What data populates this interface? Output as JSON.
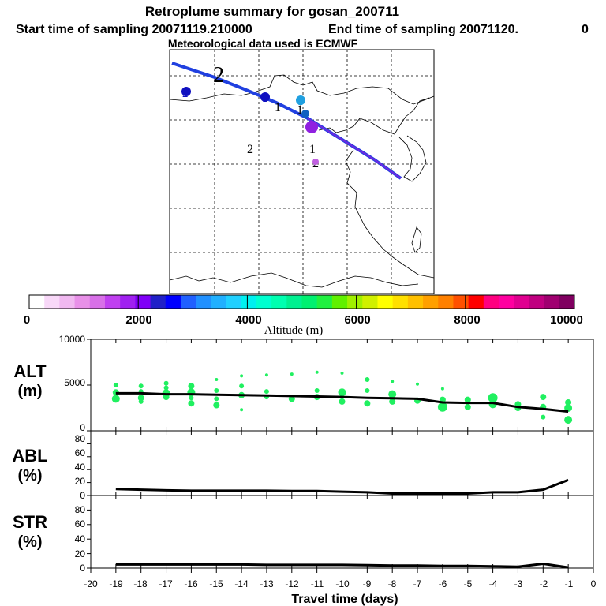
{
  "header": {
    "title": "Retroplume summary for gosan_200711",
    "start_label": "Start time of sampling 20071119.210000",
    "end_label": "End time of sampling 20071120.",
    "end_suffix": "0",
    "met_label": "Meteorological data used is ECMWF"
  },
  "colorbar": {
    "ticks": [
      "0",
      "2000",
      "4000",
      "6000",
      "8000",
      "10000"
    ],
    "label": "Altitude (m)",
    "colors": [
      "#ffffff",
      "#f8d8f8",
      "#f0b8f0",
      "#e890e8",
      "#d870e8",
      "#c040f0",
      "#a020f0",
      "#8000f8",
      "#2020c8",
      "#0000ff",
      "#2060ff",
      "#2090ff",
      "#20b0ff",
      "#20d0ff",
      "#00f0f0",
      "#00ffd0",
      "#00ffb0",
      "#00f090",
      "#00f070",
      "#20f040",
      "#60f000",
      "#a0f000",
      "#d0f000",
      "#ffff00",
      "#ffe000",
      "#ffc000",
      "#ffa000",
      "#ff8000",
      "#ff5000",
      "#ff0000",
      "#ff0080",
      "#ff00a0",
      "#e00090",
      "#c00080",
      "#a00070",
      "#800060"
    ]
  },
  "map": {
    "path_color": "#2040e0",
    "labels": [
      {
        "text": "2",
        "color": "#000000"
      },
      {
        "text": "1",
        "color": "#000000"
      },
      {
        "text": "1",
        "color": "#000000"
      },
      {
        "text": "2",
        "color": "#000000"
      },
      {
        "text": "1",
        "color": "#000000"
      },
      {
        "text": "2",
        "color": "#000000"
      }
    ],
    "markers": [
      {
        "text": "2",
        "color": "#1010c0"
      },
      {
        "text": "1",
        "color": "#1010c0"
      },
      {
        "text": "1",
        "color": "#20a0e0"
      },
      {
        "text": "1",
        "color": "#1060c0"
      },
      {
        "text": "1",
        "color": "#9020e0"
      },
      {
        "text": "2",
        "color": "#c060e0"
      }
    ]
  },
  "chart_data": [
    {
      "type": "scatter",
      "name": "ALT",
      "ylabel": "ALT",
      "yunit": "(m)",
      "ylim": [
        0,
        10000
      ],
      "yticks": [
        "0",
        "5000",
        "10000"
      ],
      "xlim": [
        -20,
        0
      ],
      "point_color": "#20f060",
      "line_color": "#000000",
      "median_x": [
        -19,
        -18,
        -17,
        -16,
        -15,
        -14,
        -13,
        -12,
        -11,
        -10,
        -9,
        -8,
        -7,
        -6,
        -5,
        -4,
        -3,
        -2,
        -1
      ],
      "median_y": [
        4100,
        4100,
        4000,
        4000,
        3950,
        3900,
        3850,
        3800,
        3750,
        3700,
        3600,
        3550,
        3500,
        3100,
        3050,
        3050,
        2600,
        2400,
        2100
      ],
      "points_x": [
        -19,
        -19,
        -19,
        -18,
        -18,
        -18,
        -18,
        -17,
        -17,
        -17,
        -17,
        -16,
        -16,
        -16,
        -16,
        -15,
        -15,
        -15,
        -15,
        -14,
        -14,
        -14,
        -14,
        -13,
        -13,
        -13,
        -12,
        -12,
        -11,
        -11,
        -11,
        -10,
        -10,
        -10,
        -9,
        -9,
        -9,
        -8,
        -8,
        -8,
        -7,
        -7,
        -6,
        -6,
        -6,
        -5,
        -5,
        -4,
        -4,
        -3,
        -3,
        -2,
        -2,
        -2,
        -1,
        -1,
        -1
      ],
      "points_y": [
        3500,
        4200,
        5000,
        3600,
        4300,
        4900,
        3200,
        3700,
        4100,
        5200,
        4700,
        3000,
        4200,
        4900,
        3600,
        2800,
        3500,
        4400,
        5600,
        2300,
        3900,
        4900,
        6000,
        3700,
        4300,
        6100,
        3500,
        6200,
        3700,
        4400,
        6400,
        3200,
        4200,
        6300,
        3000,
        4400,
        5600,
        3200,
        4000,
        5400,
        3300,
        5100,
        2600,
        3400,
        4600,
        2600,
        3400,
        2900,
        3600,
        2500,
        2900,
        1500,
        2600,
        3700,
        1200,
        2500,
        3100
      ],
      "points_size": [
        5,
        4,
        3,
        4,
        3,
        3,
        3,
        4,
        5,
        3,
        3,
        4,
        5,
        4,
        3,
        4,
        3,
        3,
        2,
        2,
        4,
        3,
        2,
        3,
        3,
        2,
        4,
        2,
        4,
        3,
        2,
        4,
        5,
        2,
        4,
        3,
        3,
        4,
        5,
        2,
        4,
        2,
        6,
        4,
        2,
        4,
        4,
        5,
        6,
        4,
        4,
        3,
        4,
        4,
        5,
        5,
        4
      ]
    },
    {
      "type": "line",
      "name": "ABL",
      "ylabel": "ABL",
      "yunit": "(%)",
      "ylim": [
        0,
        100
      ],
      "yticks": [
        "0",
        "20",
        "40",
        "60",
        "80"
      ],
      "xlim": [
        -20,
        0
      ],
      "line_color": "#000000",
      "x": [
        -19,
        -18,
        -17,
        -16,
        -15,
        -14,
        -13,
        -12,
        -11,
        -10,
        -9,
        -8,
        -7,
        -6,
        -5,
        -4,
        -3,
        -2,
        -1
      ],
      "y": [
        10,
        9,
        8,
        7.5,
        7.5,
        7.5,
        7.5,
        7,
        7,
        6,
        5,
        3,
        3,
        3,
        3,
        5,
        5,
        9,
        24
      ]
    },
    {
      "type": "line",
      "name": "STR",
      "ylabel": "STR",
      "yunit": "(%)",
      "ylim": [
        0,
        100
      ],
      "yticks": [
        "0",
        "20",
        "40",
        "60",
        "80"
      ],
      "xlim": [
        -20,
        0
      ],
      "line_color": "#000000",
      "xlabel": "Travel time (days)",
      "xticks": [
        "-20",
        "-19",
        "-18",
        "-17",
        "-16",
        "-15",
        "-14",
        "-13",
        "-12",
        "-11",
        "-10",
        "-9",
        "-8",
        "-7",
        "-6",
        "-5",
        "-4",
        "-3",
        "-2",
        "-1",
        "0"
      ],
      "x": [
        -19,
        -18,
        -17,
        -16,
        -15,
        -14,
        -13,
        -12,
        -11,
        -10,
        -9,
        -8,
        -7,
        -6,
        -5,
        -4,
        -3,
        -2,
        -1
      ],
      "y": [
        5,
        5,
        5,
        5,
        5,
        5,
        4.5,
        4.5,
        4.5,
        4.5,
        4,
        3.5,
        3.5,
        3,
        3,
        2.5,
        2,
        6,
        1
      ]
    }
  ]
}
